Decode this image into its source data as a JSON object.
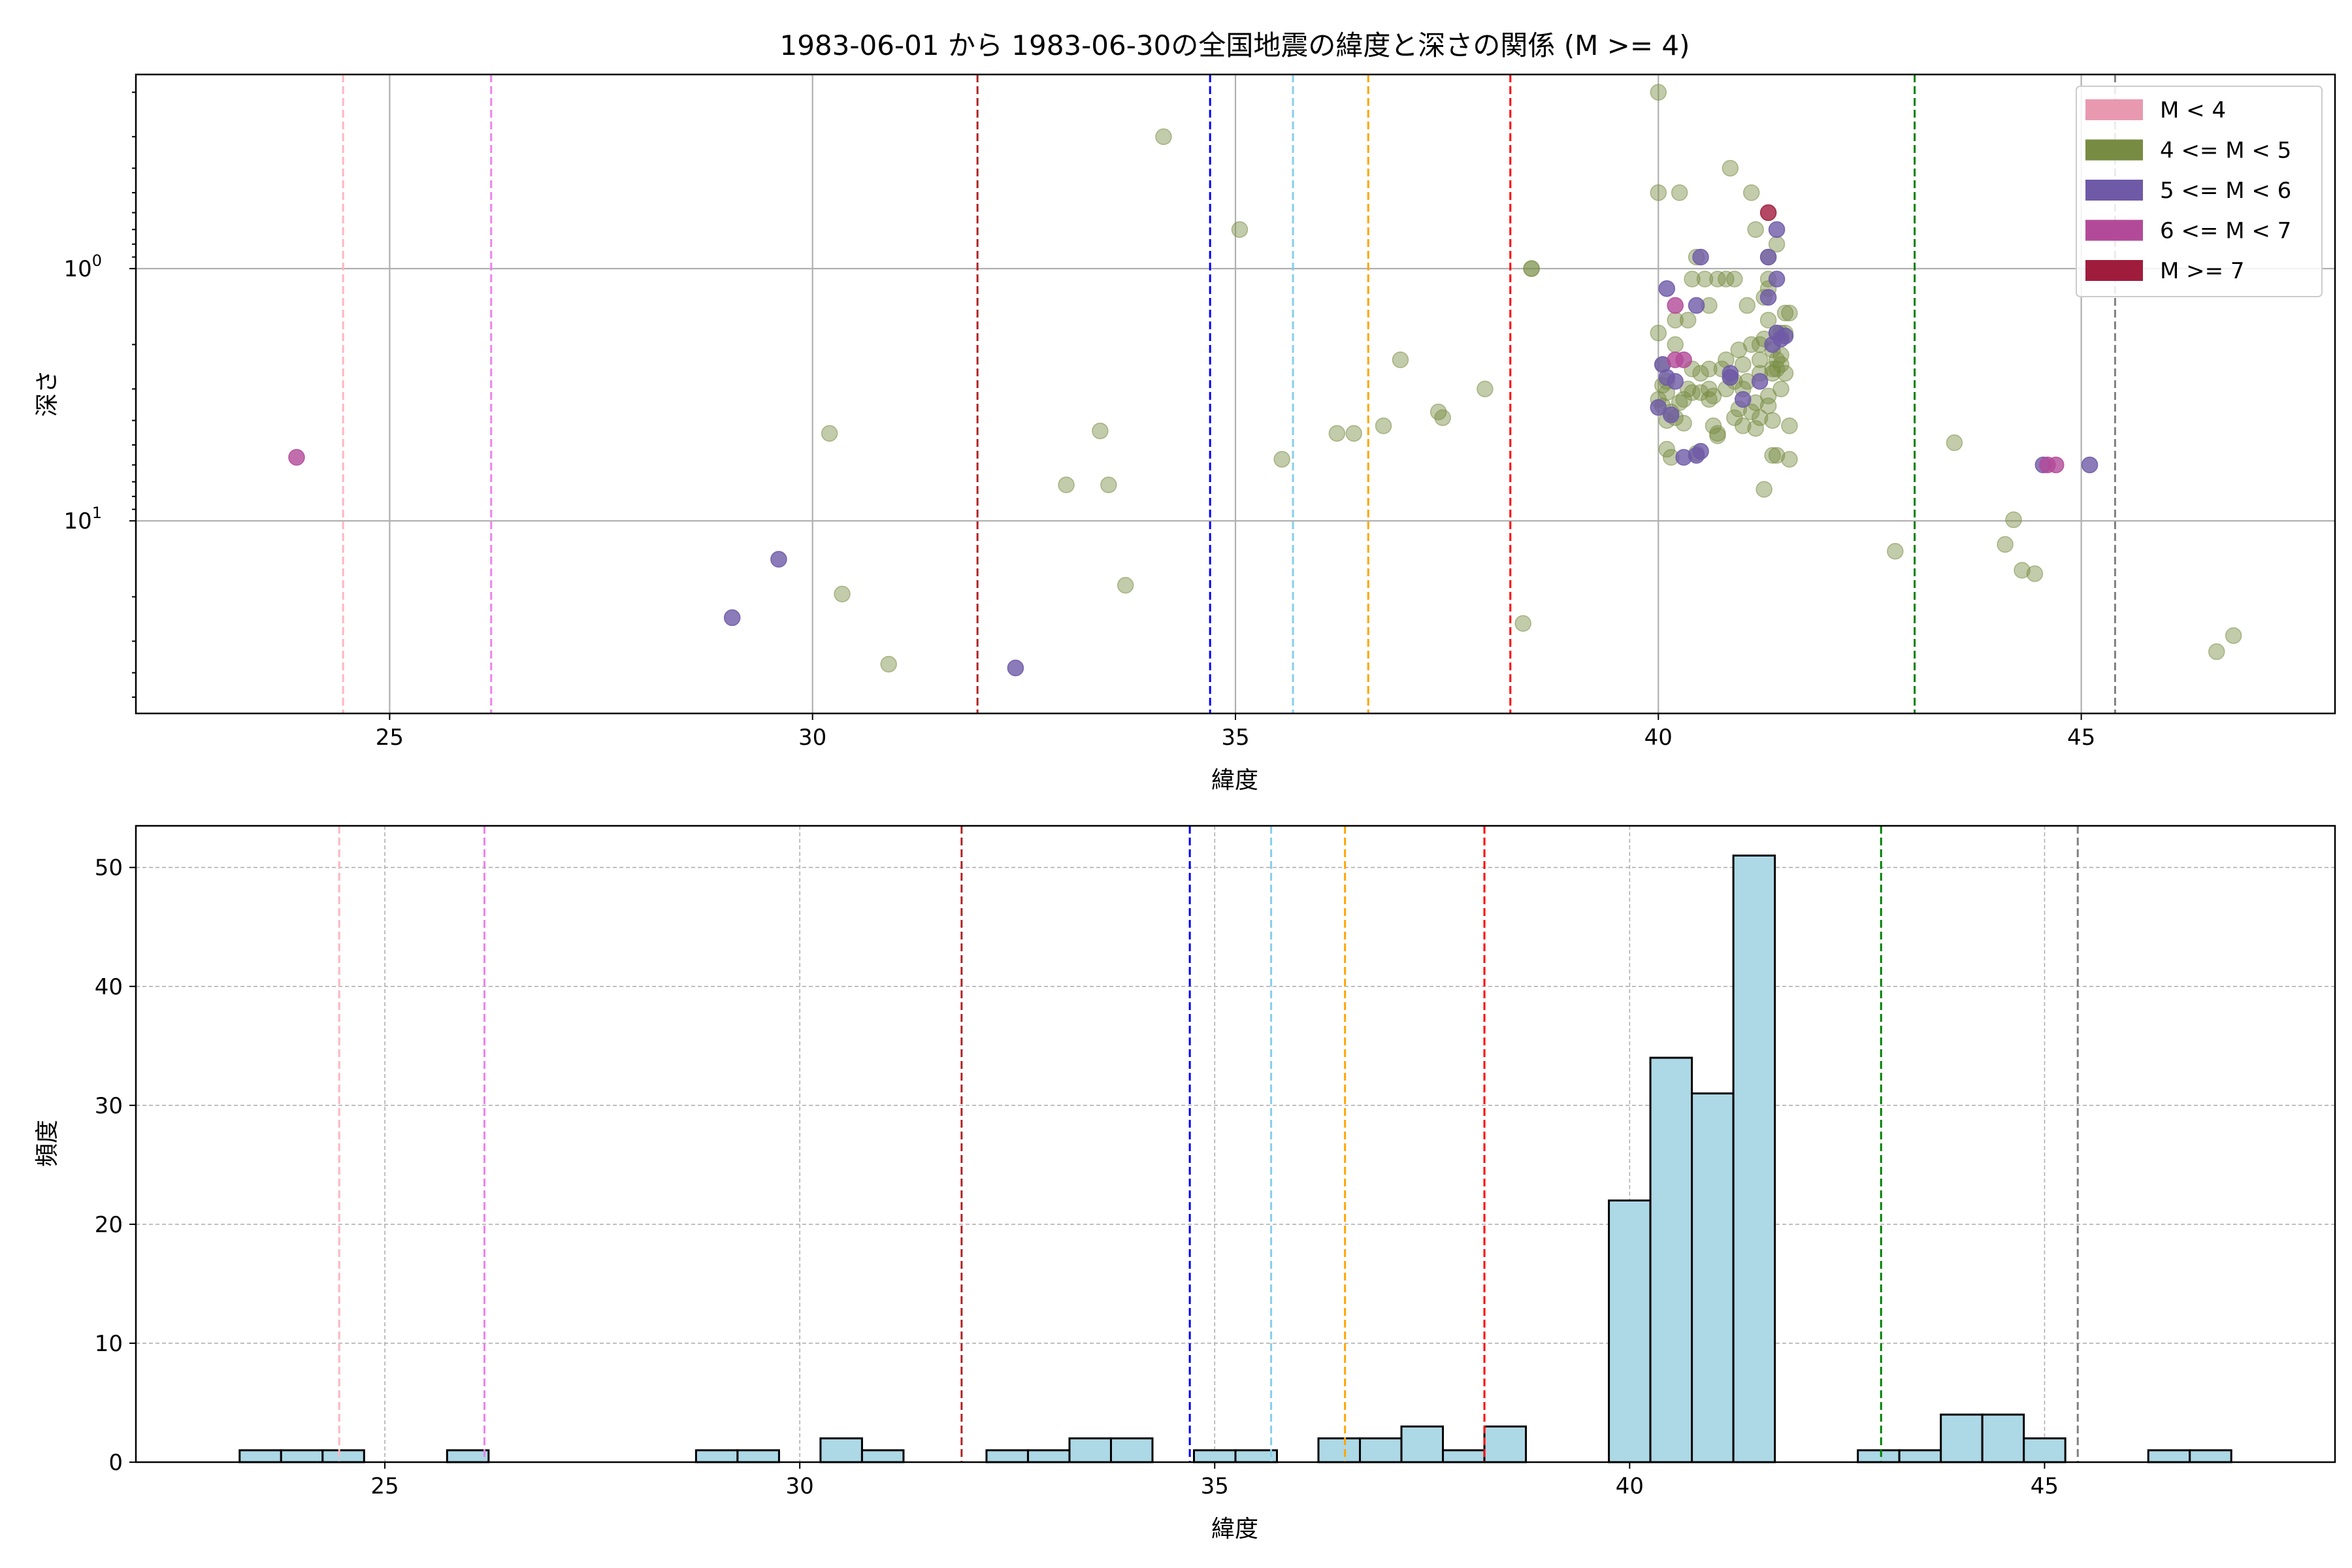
{
  "title": "1983-06-01 から 1983-06-30の全国地震の緯度と深さの関係 (M >= 4)",
  "colors": {
    "M<4": "#e899b0",
    "4<=M<5": "#778c42",
    "5<=M<6": "#6f5aa8",
    "6<=M<7": "#b34a99",
    "M>=7": "#a01c3c",
    "hist_fill": "#add8e6"
  },
  "reference_lines": [
    {
      "x": 24.45,
      "color": "#ffb6c1"
    },
    {
      "x": 26.2,
      "color": "#ee82ee"
    },
    {
      "x": 31.95,
      "color": "#b22222"
    },
    {
      "x": 34.7,
      "color": "#0000ff"
    },
    {
      "x": 35.68,
      "color": "#87ceeb"
    },
    {
      "x": 36.57,
      "color": "#ffa500"
    },
    {
      "x": 38.25,
      "color": "#ff0000"
    },
    {
      "x": 43.03,
      "color": "#008000"
    },
    {
      "x": 45.4,
      "color": "#808080"
    }
  ],
  "chart_data": [
    {
      "type": "scatter",
      "title": "1983-06-01 から 1983-06-30の全国地震の緯度と深さの関係 (M >= 4)",
      "xlabel": "緯度",
      "ylabel": "深さ",
      "xlim": [
        22,
        48
      ],
      "ylim": [
        58,
        0.17
      ],
      "yscale": "log",
      "y_inverted": true,
      "x_ticks": [
        "25",
        "30",
        "35",
        "40",
        "45"
      ],
      "y_ticks": [
        "10^0",
        "10^1"
      ],
      "grid": true,
      "legend": {
        "position": "top-right",
        "entries": [
          "M < 4",
          "4 <= M < 5",
          "5 <= M < 6",
          "6 <= M < 7",
          "M >= 7"
        ]
      },
      "series": [
        {
          "name": "M < 4",
          "color_key": "M<4",
          "points": []
        },
        {
          "name": "4 <= M < 5",
          "color_key": "4<=M<5",
          "points": [
            [
              30.2,
              4.5
            ],
            [
              30.35,
              19.5
            ],
            [
              30.9,
              37
            ],
            [
              33.0,
              7.2
            ],
            [
              33.4,
              4.4
            ],
            [
              33.5,
              7.2
            ],
            [
              33.7,
              18
            ],
            [
              34.15,
              0.3
            ],
            [
              35.05,
              0.7
            ],
            [
              35.55,
              5.7
            ],
            [
              36.2,
              4.5
            ],
            [
              36.4,
              4.5
            ],
            [
              36.75,
              4.2
            ],
            [
              36.95,
              2.3
            ],
            [
              37.45,
              3.9
            ],
            [
              37.4,
              3.7
            ],
            [
              37.95,
              3.0
            ],
            [
              38.5,
              1.0
            ],
            [
              38.5,
              1.0
            ],
            [
              38.4,
              25.5
            ],
            [
              40.0,
              0.2
            ],
            [
              40.0,
              0.5
            ],
            [
              40.25,
              0.5
            ],
            [
              40.0,
              1.8
            ],
            [
              40.05,
              2.4
            ],
            [
              40.1,
              2.8
            ],
            [
              40.05,
              3.5
            ],
            [
              40.1,
              4.0
            ],
            [
              40.1,
              5.2
            ],
            [
              40.15,
              5.6
            ],
            [
              40.2,
              3.9
            ],
            [
              40.2,
              2.0
            ],
            [
              40.3,
              3.3
            ],
            [
              40.35,
              1.6
            ],
            [
              40.4,
              1.1
            ],
            [
              40.4,
              2.5
            ],
            [
              40.45,
              0.9
            ],
            [
              40.45,
              5.4
            ],
            [
              40.5,
              3.1
            ],
            [
              40.55,
              1.1
            ],
            [
              40.6,
              3.3
            ],
            [
              40.6,
              1.4
            ],
            [
              40.65,
              4.2
            ],
            [
              40.7,
              1.1
            ],
            [
              40.7,
              4.5
            ],
            [
              40.75,
              2.5
            ],
            [
              40.8,
              1.1
            ],
            [
              40.8,
              3.0
            ],
            [
              40.85,
              2.7
            ],
            [
              40.85,
              0.4
            ],
            [
              40.9,
              1.1
            ],
            [
              40.9,
              3.9
            ],
            [
              40.95,
              2.1
            ],
            [
              41.0,
              4.2
            ],
            [
              41.0,
              3.0
            ],
            [
              41.05,
              1.4
            ],
            [
              41.05,
              2.8
            ],
            [
              41.1,
              0.5
            ],
            [
              41.1,
              3.7
            ],
            [
              41.15,
              4.3
            ],
            [
              41.15,
              0.7
            ],
            [
              41.2,
              3.9
            ],
            [
              41.2,
              2.6
            ],
            [
              41.25,
              7.5
            ],
            [
              41.25,
              1.3
            ],
            [
              41.3,
              1.2
            ],
            [
              41.3,
              1.6
            ],
            [
              41.3,
              3.2
            ],
            [
              41.35,
              2.5
            ],
            [
              41.35,
              5.5
            ],
            [
              41.35,
              4.0
            ],
            [
              41.4,
              5.5
            ],
            [
              41.4,
              0.8
            ],
            [
              41.4,
              1.8
            ],
            [
              41.4,
              2.5
            ],
            [
              41.45,
              3.0
            ],
            [
              41.45,
              2.2
            ],
            [
              41.45,
              1.8
            ],
            [
              41.5,
              1.5
            ],
            [
              41.5,
              2.6
            ],
            [
              41.55,
              1.5
            ],
            [
              41.55,
              4.2
            ],
            [
              41.55,
              5.7
            ],
            [
              41.35,
              2.6
            ],
            [
              41.3,
              3.5
            ],
            [
              41.25,
              1.9
            ],
            [
              41.2,
              2.3
            ],
            [
              41.15,
              3.4
            ],
            [
              41.1,
              2.0
            ],
            [
              41.35,
              2.1
            ],
            [
              41.4,
              2.3
            ],
            [
              41.45,
              2.4
            ],
            [
              41.0,
              2.4
            ],
            [
              40.95,
              3.6
            ],
            [
              40.9,
              2.8
            ],
            [
              40.7,
              4.6
            ],
            [
              40.65,
              3.2
            ],
            [
              40.6,
              3.0
            ],
            [
              40.5,
              2.6
            ],
            [
              40.4,
              3.1
            ],
            [
              40.35,
              3.0
            ],
            [
              40.25,
              3.4
            ],
            [
              40.15,
              3.7
            ],
            [
              40.1,
              3.1
            ],
            [
              40.05,
              2.9
            ],
            [
              40.0,
              3.3
            ],
            [
              40.2,
              1.6
            ],
            [
              40.3,
              4.1
            ],
            [
              40.6,
              2.5
            ],
            [
              40.8,
              2.3
            ],
            [
              41.2,
              2.0
            ],
            [
              41.5,
              1.8
            ],
            [
              41.3,
              0.9
            ],
            [
              41.3,
              1.1
            ],
            [
              42.8,
              13.2
            ],
            [
              43.5,
              4.9
            ],
            [
              44.1,
              12.4
            ],
            [
              44.2,
              9.9
            ],
            [
              44.3,
              15.7
            ],
            [
              44.45,
              16.2
            ],
            [
              46.6,
              33
            ],
            [
              46.8,
              28.5
            ]
          ]
        },
        {
          "name": "5 <= M < 6",
          "color_key": "5<=M<6",
          "points": [
            [
              29.05,
              24.2
            ],
            [
              29.6,
              14.2
            ],
            [
              32.4,
              38.3
            ],
            [
              40.0,
              3.55
            ],
            [
              40.05,
              2.4
            ],
            [
              40.1,
              2.7
            ],
            [
              40.15,
              3.8
            ],
            [
              40.1,
              1.2
            ],
            [
              40.2,
              2.8
            ],
            [
              40.3,
              5.6
            ],
            [
              40.45,
              5.5
            ],
            [
              40.5,
              5.3
            ],
            [
              40.45,
              1.4
            ],
            [
              40.5,
              0.9
            ],
            [
              40.85,
              2.7
            ],
            [
              40.85,
              2.6
            ],
            [
              41.0,
              3.3
            ],
            [
              41.2,
              2.8
            ],
            [
              41.3,
              0.9
            ],
            [
              41.3,
              1.3
            ],
            [
              41.4,
              1.1
            ],
            [
              41.4,
              0.7
            ],
            [
              41.35,
              2.0
            ],
            [
              41.4,
              1.8
            ],
            [
              41.45,
              1.9
            ],
            [
              41.5,
              1.85
            ],
            [
              44.55,
              6.0
            ],
            [
              45.1,
              6.0
            ]
          ]
        },
        {
          "name": "6 <= M < 7",
          "color_key": "6<=M<7",
          "points": [
            [
              23.9,
              5.6
            ],
            [
              40.2,
              1.4
            ],
            [
              40.2,
              2.3
            ],
            [
              40.3,
              2.3
            ],
            [
              44.6,
              6.0
            ],
            [
              44.7,
              6.0
            ]
          ]
        },
        {
          "name": "M >= 7",
          "color_key": "M>=7",
          "points": [
            [
              41.3,
              0.6
            ]
          ]
        }
      ]
    },
    {
      "type": "bar",
      "xlabel": "緯度",
      "ylabel": "頻度",
      "xlim": [
        22,
        48.5
      ],
      "ylim": [
        0,
        53.5
      ],
      "x_ticks": [
        "25",
        "30",
        "35",
        "40",
        "45"
      ],
      "y_ticks": [
        "0",
        "10",
        "20",
        "30",
        "40",
        "50"
      ],
      "grid": true,
      "bin_width": 0.5,
      "bins": [
        {
          "x0": 23.25,
          "count": 1
        },
        {
          "x0": 23.75,
          "count": 1
        },
        {
          "x0": 24.25,
          "count": 1
        },
        {
          "x0": 25.75,
          "count": 1
        },
        {
          "x0": 28.75,
          "count": 1
        },
        {
          "x0": 29.25,
          "count": 1
        },
        {
          "x0": 30.25,
          "count": 2
        },
        {
          "x0": 30.75,
          "count": 1
        },
        {
          "x0": 32.25,
          "count": 1
        },
        {
          "x0": 32.75,
          "count": 1
        },
        {
          "x0": 33.25,
          "count": 2
        },
        {
          "x0": 33.75,
          "count": 2
        },
        {
          "x0": 34.75,
          "count": 1
        },
        {
          "x0": 35.25,
          "count": 1
        },
        {
          "x0": 36.25,
          "count": 2
        },
        {
          "x0": 36.75,
          "count": 2
        },
        {
          "x0": 37.25,
          "count": 3
        },
        {
          "x0": 37.75,
          "count": 1
        },
        {
          "x0": 38.25,
          "count": 3
        },
        {
          "x0": 39.75,
          "count": 22
        },
        {
          "x0": 40.25,
          "count": 34
        },
        {
          "x0": 40.75,
          "count": 31
        },
        {
          "x0": 41.25,
          "count": 51
        },
        {
          "x0": 42.75,
          "count": 1
        },
        {
          "x0": 43.25,
          "count": 1
        },
        {
          "x0": 43.75,
          "count": 4
        },
        {
          "x0": 44.25,
          "count": 4
        },
        {
          "x0": 44.75,
          "count": 2
        },
        {
          "x0": 46.25,
          "count": 1
        },
        {
          "x0": 46.75,
          "count": 1
        }
      ]
    }
  ]
}
